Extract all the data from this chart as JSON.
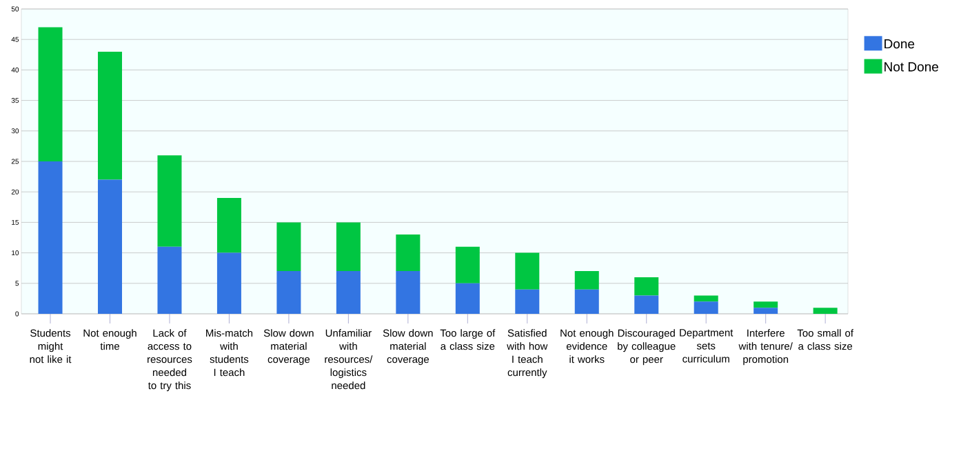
{
  "chart_data": {
    "type": "bar",
    "stacked": true,
    "categories": [
      "Students might not like it",
      "Not enough time",
      "Lack of access to resources needed to try this",
      "Mis-match with students I teach",
      "Slow down material coverage",
      "Unfamiliar with resources/ logistics needed",
      "Slow down material coverage",
      "Too large of a class size",
      "Satisfied with how I teach currently",
      "Not enough evidence it works",
      "Discouraged by colleague or peer",
      "Department sets curriculum",
      "Interfere with tenure/ promotion",
      "Too small of a class size"
    ],
    "series": [
      {
        "name": "Done",
        "color": "#3375e2",
        "values": [
          25,
          22,
          11,
          10,
          7,
          7,
          7,
          5,
          4,
          4,
          3,
          2,
          1,
          0
        ]
      },
      {
        "name": "Not Done",
        "color": "#00c642",
        "values": [
          22,
          21,
          15,
          9,
          8,
          8,
          6,
          6,
          6,
          3,
          3,
          1,
          1,
          1
        ]
      }
    ],
    "ylim": [
      0,
      50
    ],
    "yticks": [
      0,
      5,
      10,
      15,
      20,
      25,
      30,
      35,
      40,
      45,
      50
    ],
    "grid": "y",
    "legend": "right"
  }
}
